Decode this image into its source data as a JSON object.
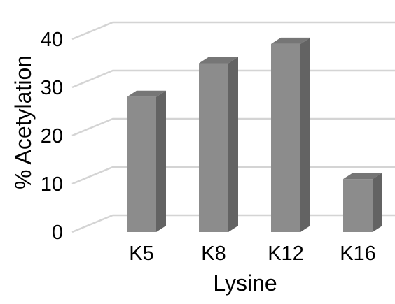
{
  "chart_data": {
    "type": "bar",
    "style": "3d-column",
    "categories": [
      "K5",
      "K8",
      "K12",
      "K16"
    ],
    "values": [
      28,
      35,
      39,
      11
    ],
    "xlabel": "Lysine",
    "ylabel": "% Acetylation",
    "ylim": [
      0,
      45
    ],
    "yticks": [
      0,
      10,
      20,
      30,
      40
    ],
    "grid": true,
    "legend": "none",
    "colors": {
      "bar_front": "#8c8c8c",
      "bar_side": "#636363",
      "bar_top": "#767676",
      "gridline": "#d4d4d4"
    }
  }
}
